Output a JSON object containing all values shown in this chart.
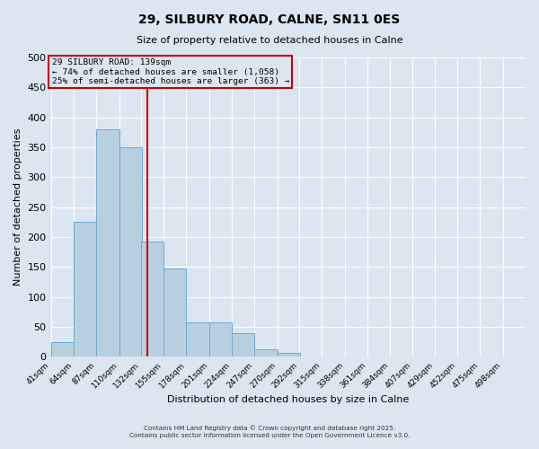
{
  "title": "29, SILBURY ROAD, CALNE, SN11 0ES",
  "subtitle": "Size of property relative to detached houses in Calne",
  "xlabel": "Distribution of detached houses by size in Calne",
  "ylabel": "Number of detached properties",
  "bin_labels": [
    "41sqm",
    "64sqm",
    "87sqm",
    "110sqm",
    "132sqm",
    "155sqm",
    "178sqm",
    "201sqm",
    "224sqm",
    "247sqm",
    "270sqm",
    "292sqm",
    "315sqm",
    "338sqm",
    "361sqm",
    "384sqm",
    "407sqm",
    "429sqm",
    "452sqm",
    "475sqm",
    "498sqm"
  ],
  "bin_edges": [
    41,
    64,
    87,
    110,
    132,
    155,
    178,
    201,
    224,
    247,
    270,
    292,
    315,
    338,
    361,
    384,
    407,
    429,
    452,
    475,
    498
  ],
  "bar_heights": [
    25,
    225,
    380,
    350,
    192,
    147,
    57,
    57,
    40,
    12,
    6,
    0,
    0,
    0,
    0,
    0,
    0,
    0,
    0,
    0
  ],
  "bar_color": "#b8cfe0",
  "bar_edge_color": "#6aaad4",
  "vline_x": 139,
  "vline_color": "#cc0000",
  "annotation_title": "29 SILBURY ROAD: 139sqm",
  "annotation_line1": "← 74% of detached houses are smaller (1,058)",
  "annotation_line2": "25% of semi-detached houses are larger (363) →",
  "annotation_box_edge_color": "#cc0000",
  "ylim": [
    0,
    500
  ],
  "yticks": [
    0,
    50,
    100,
    150,
    200,
    250,
    300,
    350,
    400,
    450,
    500
  ],
  "background_color": "#dce6f0",
  "plot_bg_color": "#dce6f0",
  "grid_color": "#ffffff",
  "footer1": "Contains HM Land Registry data © Crown copyright and database right 2025.",
  "footer2": "Contains public sector information licensed under the Open Government Licence v3.0."
}
